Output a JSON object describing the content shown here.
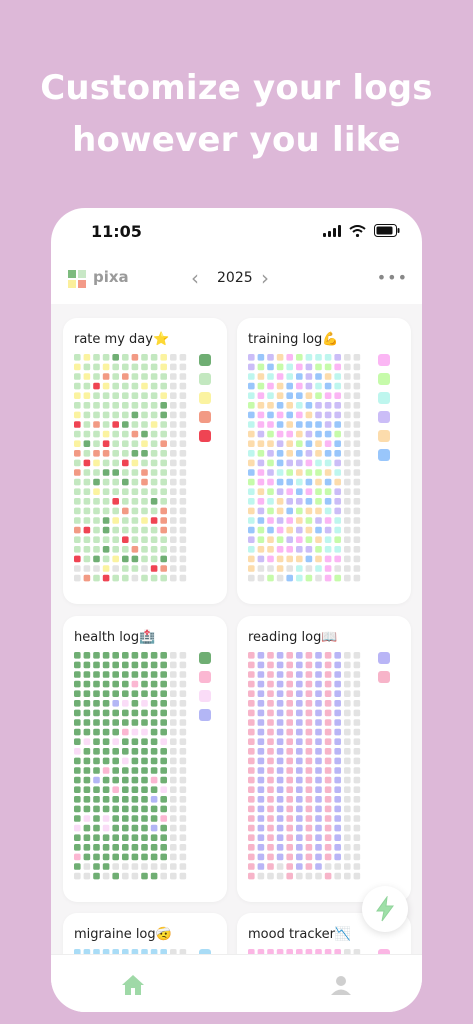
{
  "headline": {
    "line1": "Customize your logs",
    "line2": "however you like"
  },
  "status_bar": {
    "time": "11:05",
    "icons": [
      "signal-icon",
      "wifi-icon",
      "battery-icon"
    ]
  },
  "app_bar": {
    "app_name": "pixa",
    "year": "2025",
    "prev_icon": "chevron-left-icon",
    "next_icon": "chevron-right-icon",
    "more_icon": "more-icon"
  },
  "logs": [
    {
      "title": "rate my day⭐",
      "legend_colors": [
        "#6fae73",
        "#c3e8c0",
        "#fbf3a0",
        "#f29a84",
        "#ef4453"
      ]
    },
    {
      "title": "training log💪",
      "legend_colors": [
        "#fbb6f4",
        "#c6fbaa",
        "#bef6ee",
        "#cbbdf7",
        "#fcdcac",
        "#99c6fb"
      ]
    },
    {
      "title": "health log🏥",
      "legend_colors": [
        "#6fae73",
        "#fbb7d2",
        "#fadcf7",
        "#b3b6f5"
      ]
    },
    {
      "title": "reading log📖",
      "legend_colors": [
        "#b9b5f6",
        "#f7b4c9"
      ]
    },
    {
      "title": "migraine log🤕",
      "legend_colors": [
        "#a9dcf6"
      ]
    },
    {
      "title": "mood tracker📉",
      "legend_colors": [
        "#fbb6e4"
      ]
    }
  ],
  "fab_icon": "bolt-icon",
  "tabs": [
    {
      "name": "home",
      "icon": "home-icon"
    },
    {
      "name": "profile",
      "icon": "profile-icon"
    }
  ],
  "colors": {
    "background": "#ddb8d8",
    "empty_cell": "#e3e3e3",
    "accent": "#8fd39a"
  }
}
